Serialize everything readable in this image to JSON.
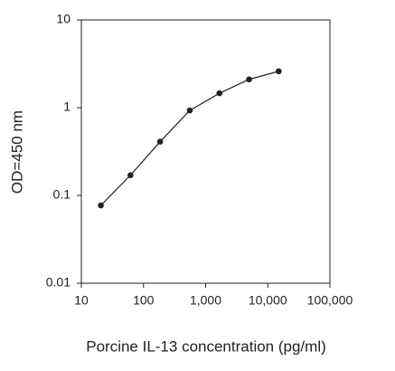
{
  "chart_data": {
    "type": "line",
    "x_label": "Porcine IL-13 concentration (pg/ml)",
    "y_label": "OD=450 nm",
    "x": [
      20.6,
      61.7,
      185,
      556,
      1667,
      5000,
      15000
    ],
    "series": [
      {
        "color": "#222222",
        "values": [
          0.077,
          0.17,
          0.41,
          0.93,
          1.46,
          2.1,
          2.6
        ]
      }
    ],
    "xscale": "log",
    "yscale": "log",
    "xlim": [
      10,
      100000
    ],
    "ylim": [
      0.01,
      10
    ],
    "xticks": [
      10,
      100,
      {
        "value": 1000,
        "label": "1,000"
      },
      {
        "value": 10000,
        "label": "10,000"
      },
      {
        "value": 100000,
        "label": "100,000"
      }
    ],
    "yticks": [
      0.01,
      0.1,
      1,
      10
    ]
  }
}
